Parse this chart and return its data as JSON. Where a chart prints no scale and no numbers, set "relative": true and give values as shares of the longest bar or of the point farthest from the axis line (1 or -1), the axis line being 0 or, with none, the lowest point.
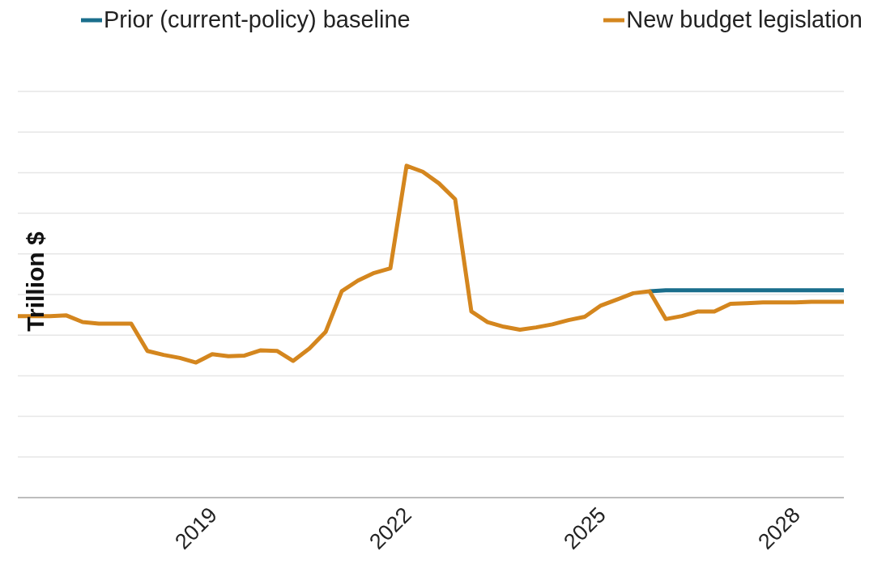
{
  "chart_data": {
    "type": "line",
    "ylabel": "Trillion $",
    "relative": true,
    "legend": "top",
    "grid": "y",
    "marker": "none",
    "line_style": "solid",
    "x": [
      "2016-04",
      "2016-07",
      "2016-10",
      "2017-01",
      "2017-04",
      "2017-07",
      "2017-10",
      "2018-01",
      "2018-04",
      "2018-07",
      "2018-10",
      "2019-01",
      "2019-04",
      "2019-07",
      "2019-10",
      "2020-01",
      "2020-04",
      "2020-07",
      "2020-10",
      "2021-01",
      "2021-04",
      "2021-07",
      "2021-10",
      "2022-01",
      "2022-04",
      "2022-07",
      "2022-10",
      "2023-01",
      "2023-04",
      "2023-07",
      "2023-10",
      "2024-01",
      "2024-04",
      "2024-07",
      "2024-10",
      "2025-01",
      "2025-04",
      "2025-07",
      "2025-10",
      "2026-01",
      "2026-04",
      "2026-07",
      "2026-10",
      "2027-01",
      "2027-04",
      "2027-07",
      "2027-10",
      "2028-01",
      "2028-04",
      "2028-07",
      "2028-10",
      "2029-01"
    ],
    "xlim": [
      "2016-04",
      "2029-01"
    ],
    "xticks": [
      "2019",
      "2022",
      "2025",
      "2028"
    ],
    "series": [
      {
        "name": "Prior (current-policy) baseline",
        "color": "#1a6e8c",
        "values": [
          null,
          null,
          null,
          null,
          null,
          null,
          null,
          null,
          null,
          null,
          null,
          null,
          null,
          null,
          null,
          null,
          null,
          null,
          null,
          null,
          null,
          null,
          null,
          null,
          null,
          null,
          null,
          null,
          null,
          null,
          null,
          null,
          null,
          null,
          null,
          null,
          null,
          null,
          null,
          0.622,
          0.625,
          0.625,
          0.625,
          0.625,
          0.625,
          0.625,
          0.625,
          0.625,
          0.625,
          0.625,
          0.625,
          0.625
        ]
      },
      {
        "name": "New budget legislation",
        "color": "#d4861e",
        "values": [
          0.547,
          0.547,
          0.547,
          0.549,
          0.529,
          0.524,
          0.524,
          0.524,
          0.442,
          0.43,
          0.421,
          0.407,
          0.432,
          0.426,
          0.428,
          0.444,
          0.442,
          0.412,
          0.449,
          0.499,
          0.622,
          0.654,
          0.677,
          0.691,
          1,
          0.982,
          0.947,
          0.899,
          0.561,
          0.529,
          0.515,
          0.506,
          0.513,
          0.522,
          0.535,
          0.545,
          0.579,
          0.597,
          0.616,
          0.622,
          0.538,
          0.547,
          0.561,
          0.561,
          0.584,
          0.586,
          0.588,
          0.588,
          0.588,
          0.59,
          0.59,
          0.59
        ]
      }
    ]
  }
}
